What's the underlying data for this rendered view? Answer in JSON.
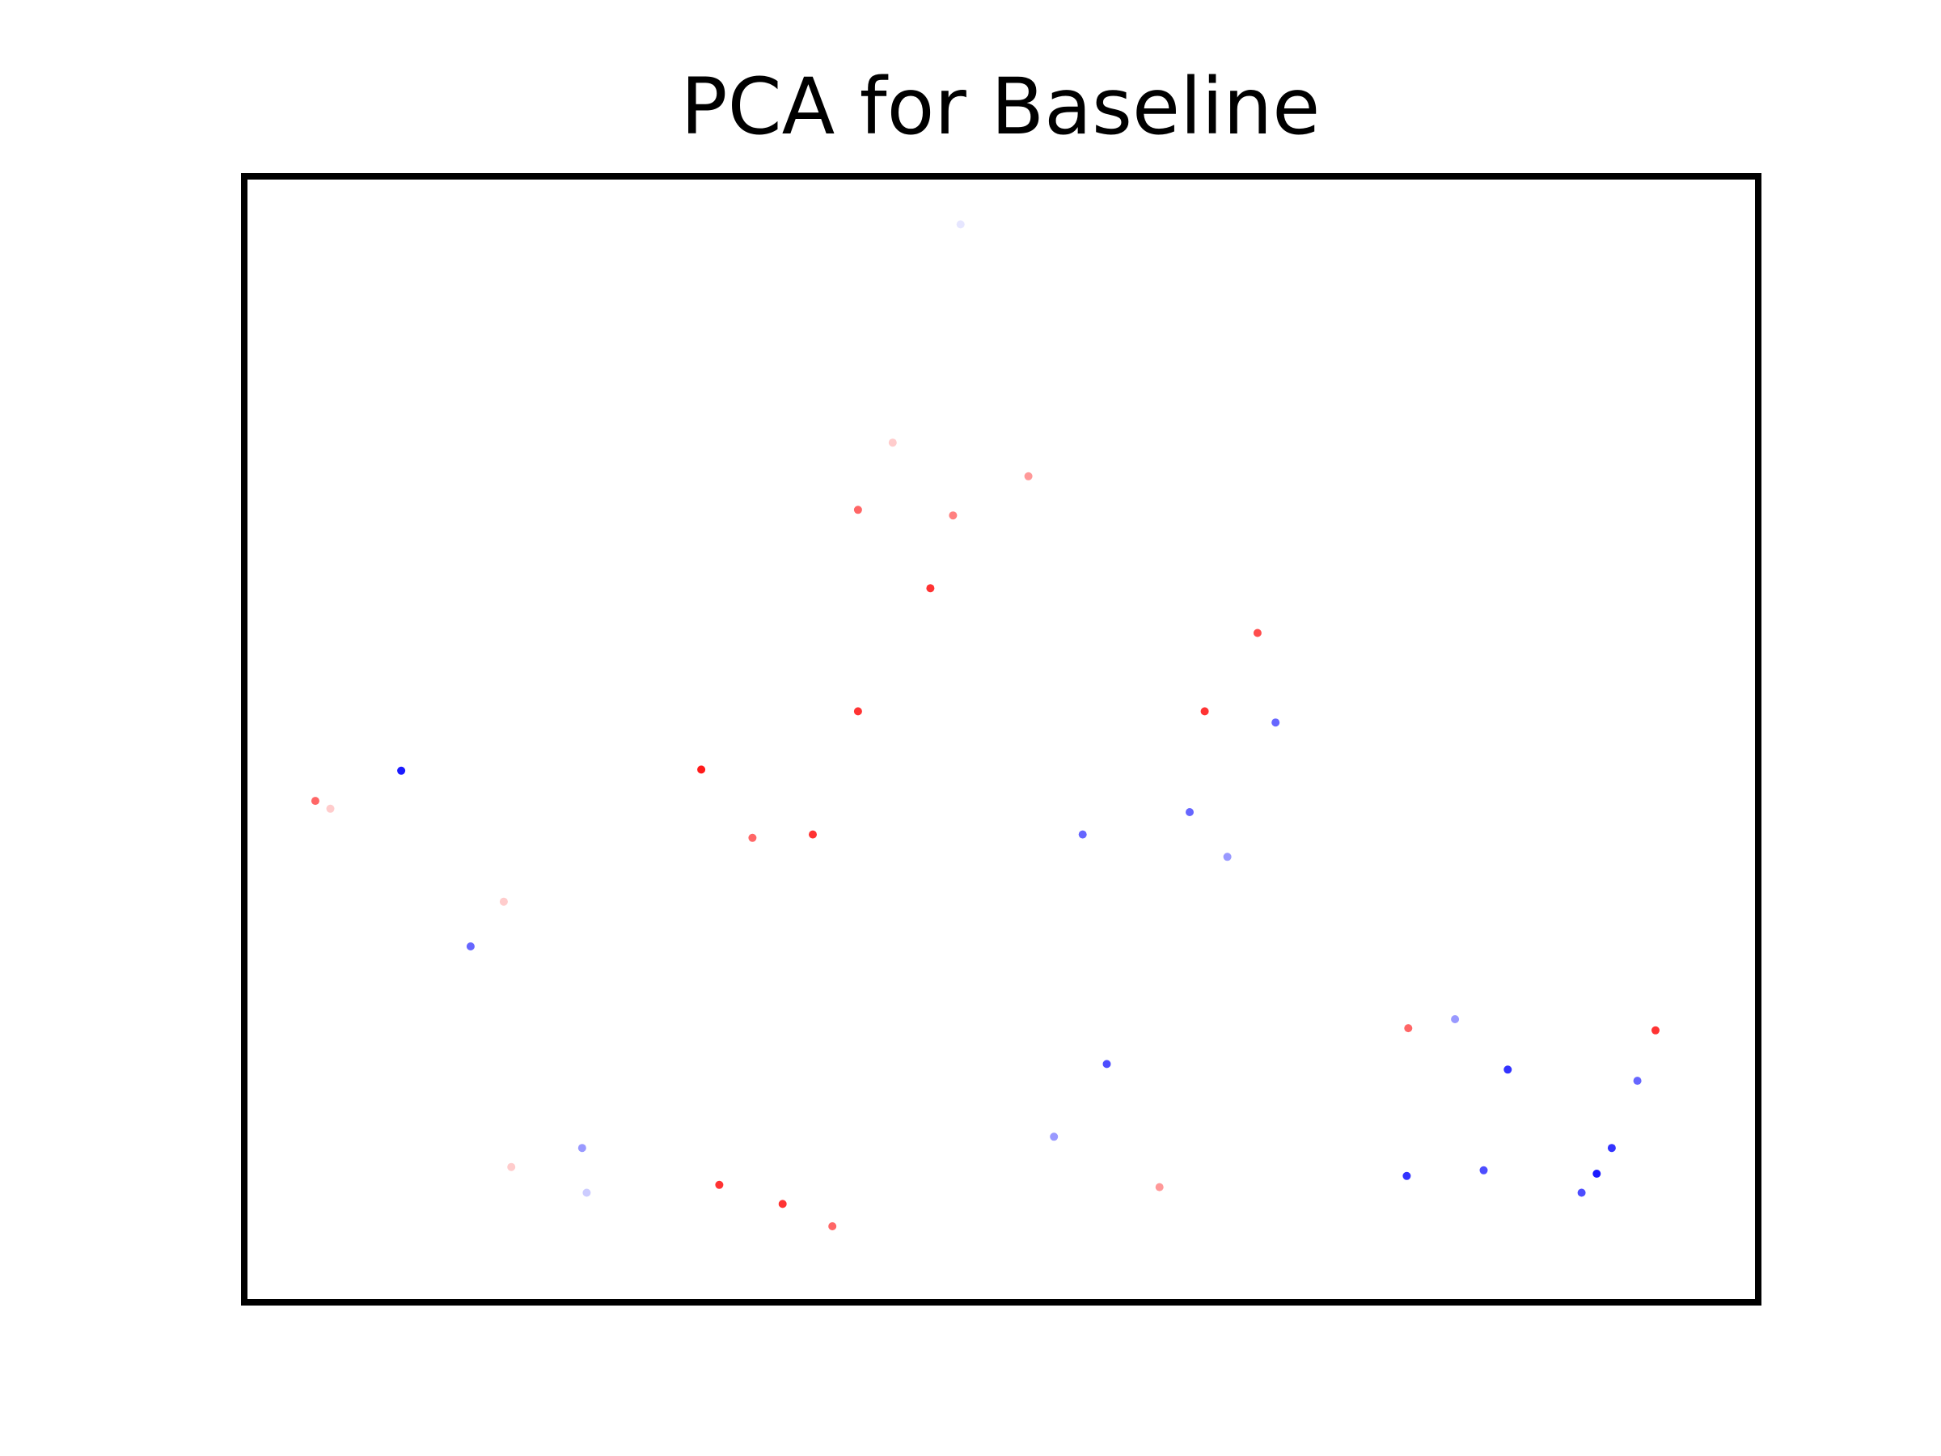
{
  "chart_data": {
    "type": "scatter",
    "title": "PCA for Baseline",
    "xlabel": "",
    "ylabel": "",
    "xlim": [
      0,
      100
    ],
    "ylim": [
      0,
      100
    ],
    "axes_ticks_visible": false,
    "grid": false,
    "legend": "none",
    "colormap": "bwr",
    "colors": {
      "low": "#0000ff",
      "mid": "#ffffff",
      "high": "#ff0000",
      "frame": "#000000"
    },
    "points": [
      [
        4.5,
        44.5,
        0.8
      ],
      [
        5.5,
        43.8,
        0.6
      ],
      [
        10.2,
        47.2,
        0.05
      ],
      [
        14.8,
        31.5,
        0.2
      ],
      [
        17.0,
        35.5,
        0.6
      ],
      [
        22.2,
        13.5,
        0.3
      ],
      [
        31.3,
        10.2,
        0.9
      ],
      [
        47.3,
        96.0,
        0.45
      ],
      [
        42.8,
        76.5,
        0.6
      ],
      [
        51.8,
        73.5,
        0.7
      ],
      [
        40.5,
        70.5,
        0.8
      ],
      [
        45.3,
        63.5,
        0.9
      ],
      [
        46.8,
        70.0,
        0.75
      ],
      [
        67.0,
        59.5,
        0.85
      ],
      [
        40.5,
        52.5,
        0.9
      ],
      [
        63.5,
        52.5,
        0.9
      ],
      [
        68.2,
        51.5,
        0.2
      ],
      [
        30.1,
        47.3,
        0.95
      ],
      [
        37.5,
        41.5,
        0.9
      ],
      [
        33.5,
        41.2,
        0.8
      ],
      [
        55.4,
        41.5,
        0.2
      ],
      [
        62.5,
        43.5,
        0.2
      ],
      [
        65.0,
        39.5,
        0.3
      ],
      [
        77.0,
        24.2,
        0.8
      ],
      [
        80.1,
        25.0,
        0.3
      ],
      [
        93.4,
        24.0,
        0.9
      ],
      [
        92.2,
        19.5,
        0.2
      ],
      [
        83.6,
        20.5,
        0.1
      ],
      [
        76.9,
        11.0,
        0.1
      ],
      [
        82.0,
        11.5,
        0.15
      ],
      [
        88.5,
        9.5,
        0.15
      ],
      [
        89.5,
        11.2,
        0.05
      ],
      [
        90.5,
        13.5,
        0.1
      ],
      [
        17.5,
        11.8,
        0.6
      ],
      [
        22.5,
        9.5,
        0.4
      ],
      [
        35.5,
        8.5,
        0.9
      ],
      [
        38.8,
        6.5,
        0.8
      ],
      [
        60.5,
        10.0,
        0.7
      ],
      [
        57.0,
        21.0,
        0.15
      ],
      [
        53.5,
        14.5,
        0.3
      ]
    ]
  }
}
